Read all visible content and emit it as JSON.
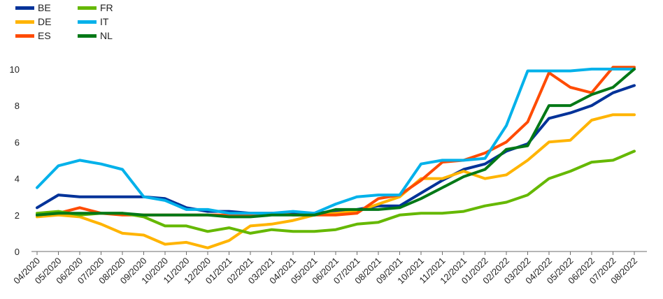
{
  "chart_data": {
    "type": "line",
    "title": "",
    "xlabel": "",
    "ylabel": "",
    "ylim": [
      0,
      10.8
    ],
    "yticks": [
      0,
      2,
      4,
      6,
      8,
      10
    ],
    "grid": false,
    "legend_position": "top-left",
    "categories": [
      "04/2020",
      "05/2020",
      "06/2020",
      "07/2020",
      "08/2020",
      "09/2020",
      "10/2020",
      "11/2020",
      "12/2020",
      "01/2021",
      "02/2021",
      "03/2021",
      "04/2021",
      "05/2021",
      "06/2021",
      "07/2021",
      "08/2021",
      "09/2021",
      "10/2021",
      "11/2021",
      "12/2021",
      "01/2022",
      "02/2022",
      "03/2022",
      "04/2022",
      "05/2022",
      "06/2022",
      "07/2022",
      "08/2022"
    ],
    "series": [
      {
        "name": "BE",
        "color": "#003299",
        "values": [
          2.4,
          3.1,
          3.0,
          3.0,
          3.0,
          3.0,
          2.9,
          2.4,
          2.2,
          2.2,
          2.1,
          2.1,
          2.1,
          2.1,
          2.2,
          2.3,
          2.5,
          2.5,
          3.2,
          3.9,
          4.5,
          4.8,
          5.5,
          5.9,
          7.3,
          7.6,
          8.0,
          8.7,
          9.1
        ]
      },
      {
        "name": "DE",
        "color": "#FFB400",
        "values": [
          1.9,
          2.0,
          1.9,
          1.5,
          1.0,
          0.9,
          0.4,
          0.5,
          0.2,
          0.6,
          1.4,
          1.5,
          1.7,
          2.0,
          2.1,
          2.2,
          2.6,
          3.0,
          4.0,
          4.0,
          4.4,
          4.0,
          4.2,
          5.0,
          6.0,
          6.1,
          7.2,
          7.5,
          7.5
        ]
      },
      {
        "name": "ES",
        "color": "#FF4B00",
        "values": [
          2.0,
          2.1,
          2.4,
          2.1,
          2.0,
          2.0,
          2.0,
          2.0,
          2.0,
          2.0,
          2.0,
          2.1,
          2.0,
          2.0,
          2.0,
          2.1,
          2.9,
          3.1,
          3.9,
          4.9,
          5.0,
          5.4,
          6.0,
          7.1,
          9.8,
          9.0,
          8.7,
          10.1,
          10.1
        ]
      },
      {
        "name": "FR",
        "color": "#65B800",
        "values": [
          2.1,
          2.2,
          2.0,
          2.1,
          2.1,
          1.9,
          1.4,
          1.4,
          1.1,
          1.3,
          1.0,
          1.2,
          1.1,
          1.1,
          1.2,
          1.5,
          1.6,
          2.0,
          2.1,
          2.1,
          2.2,
          2.5,
          2.7,
          3.1,
          4.0,
          4.4,
          4.9,
          5.0,
          5.5
        ]
      },
      {
        "name": "IT",
        "color": "#00B1EA",
        "values": [
          3.5,
          4.7,
          5.0,
          4.8,
          4.5,
          3.0,
          2.8,
          2.3,
          2.3,
          2.1,
          2.1,
          2.1,
          2.2,
          2.1,
          2.6,
          3.0,
          3.1,
          3.1,
          4.8,
          5.0,
          5.0,
          5.1,
          6.9,
          9.9,
          9.9,
          9.9,
          10.0,
          10.0,
          10.0
        ]
      },
      {
        "name": "NL",
        "color": "#007816",
        "values": [
          2.0,
          2.1,
          2.1,
          2.1,
          2.1,
          2.0,
          2.0,
          2.0,
          2.0,
          1.9,
          1.9,
          2.0,
          2.0,
          2.0,
          2.3,
          2.3,
          2.3,
          2.4,
          2.9,
          3.5,
          4.1,
          4.5,
          5.6,
          5.8,
          8.0,
          8.0,
          8.6,
          9.0,
          10.0
        ]
      }
    ]
  }
}
